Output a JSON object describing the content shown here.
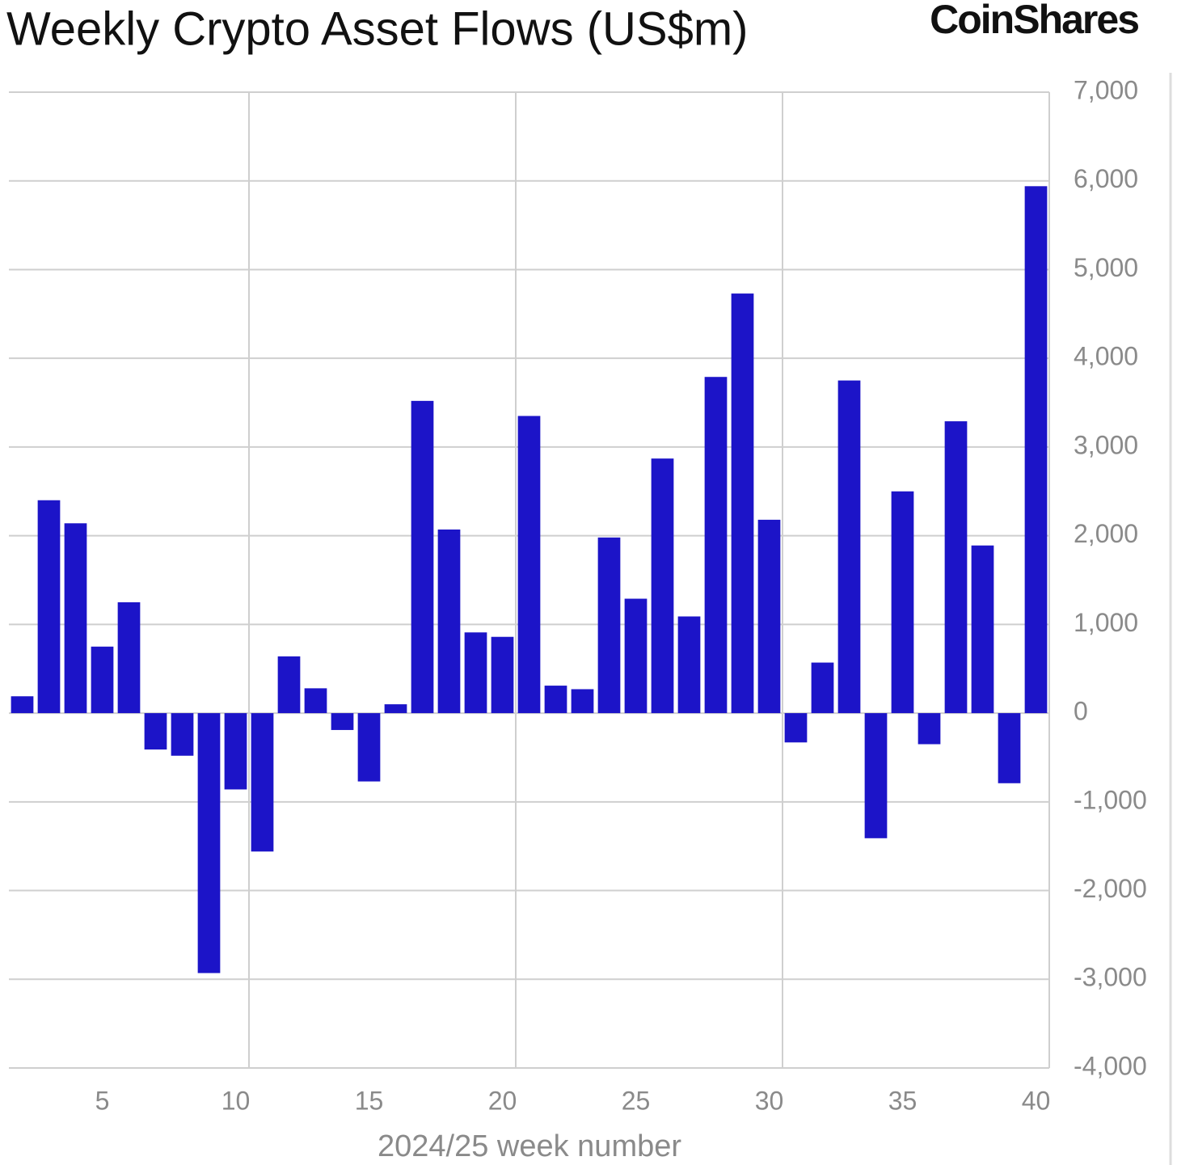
{
  "chart_data": {
    "type": "bar",
    "title": "Weekly Crypto Asset Flows (US$m)",
    "brand": "CoinShares",
    "x_label": "2024/25 week number",
    "color": "#1c14c8",
    "x": [
      2,
      3,
      4,
      5,
      6,
      7,
      8,
      9,
      10,
      11,
      12,
      13,
      14,
      15,
      16,
      17,
      18,
      19,
      20,
      21,
      22,
      23,
      24,
      25,
      26,
      27,
      28,
      29,
      30,
      31,
      32,
      33,
      34,
      35,
      36,
      37,
      38,
      39,
      40
    ],
    "values": [
      190,
      2400,
      2140,
      750,
      1250,
      -410,
      -480,
      -2930,
      -860,
      -1560,
      640,
      280,
      -190,
      -770,
      100,
      3520,
      2070,
      910,
      860,
      3350,
      310,
      270,
      1980,
      1290,
      2870,
      1090,
      3790,
      4730,
      2180,
      -330,
      570,
      3750,
      -1410,
      2500,
      -350,
      3290,
      1890,
      -790,
      5940
    ],
    "xlim": [
      1.5,
      40.5
    ],
    "xticks": [
      5,
      10,
      15,
      20,
      25,
      30,
      35,
      40
    ],
    "ylim": [
      -4000,
      7000
    ],
    "yticks": [
      {
        "value": -4000,
        "label": "-4,000"
      },
      {
        "value": -3000,
        "label": "-3,000"
      },
      {
        "value": -2000,
        "label": "-2,000"
      },
      {
        "value": -1000,
        "label": "-1,000"
      },
      0,
      {
        "value": 1000,
        "label": "1,000"
      },
      {
        "value": 2000,
        "label": "2,000"
      },
      {
        "value": 3000,
        "label": "3,000"
      },
      {
        "value": 4000,
        "label": "4,000"
      },
      {
        "value": 5000,
        "label": "5,000"
      },
      {
        "value": 6000,
        "label": "6,000"
      },
      {
        "value": 7000,
        "label": "7,000"
      }
    ],
    "grid": true
  }
}
